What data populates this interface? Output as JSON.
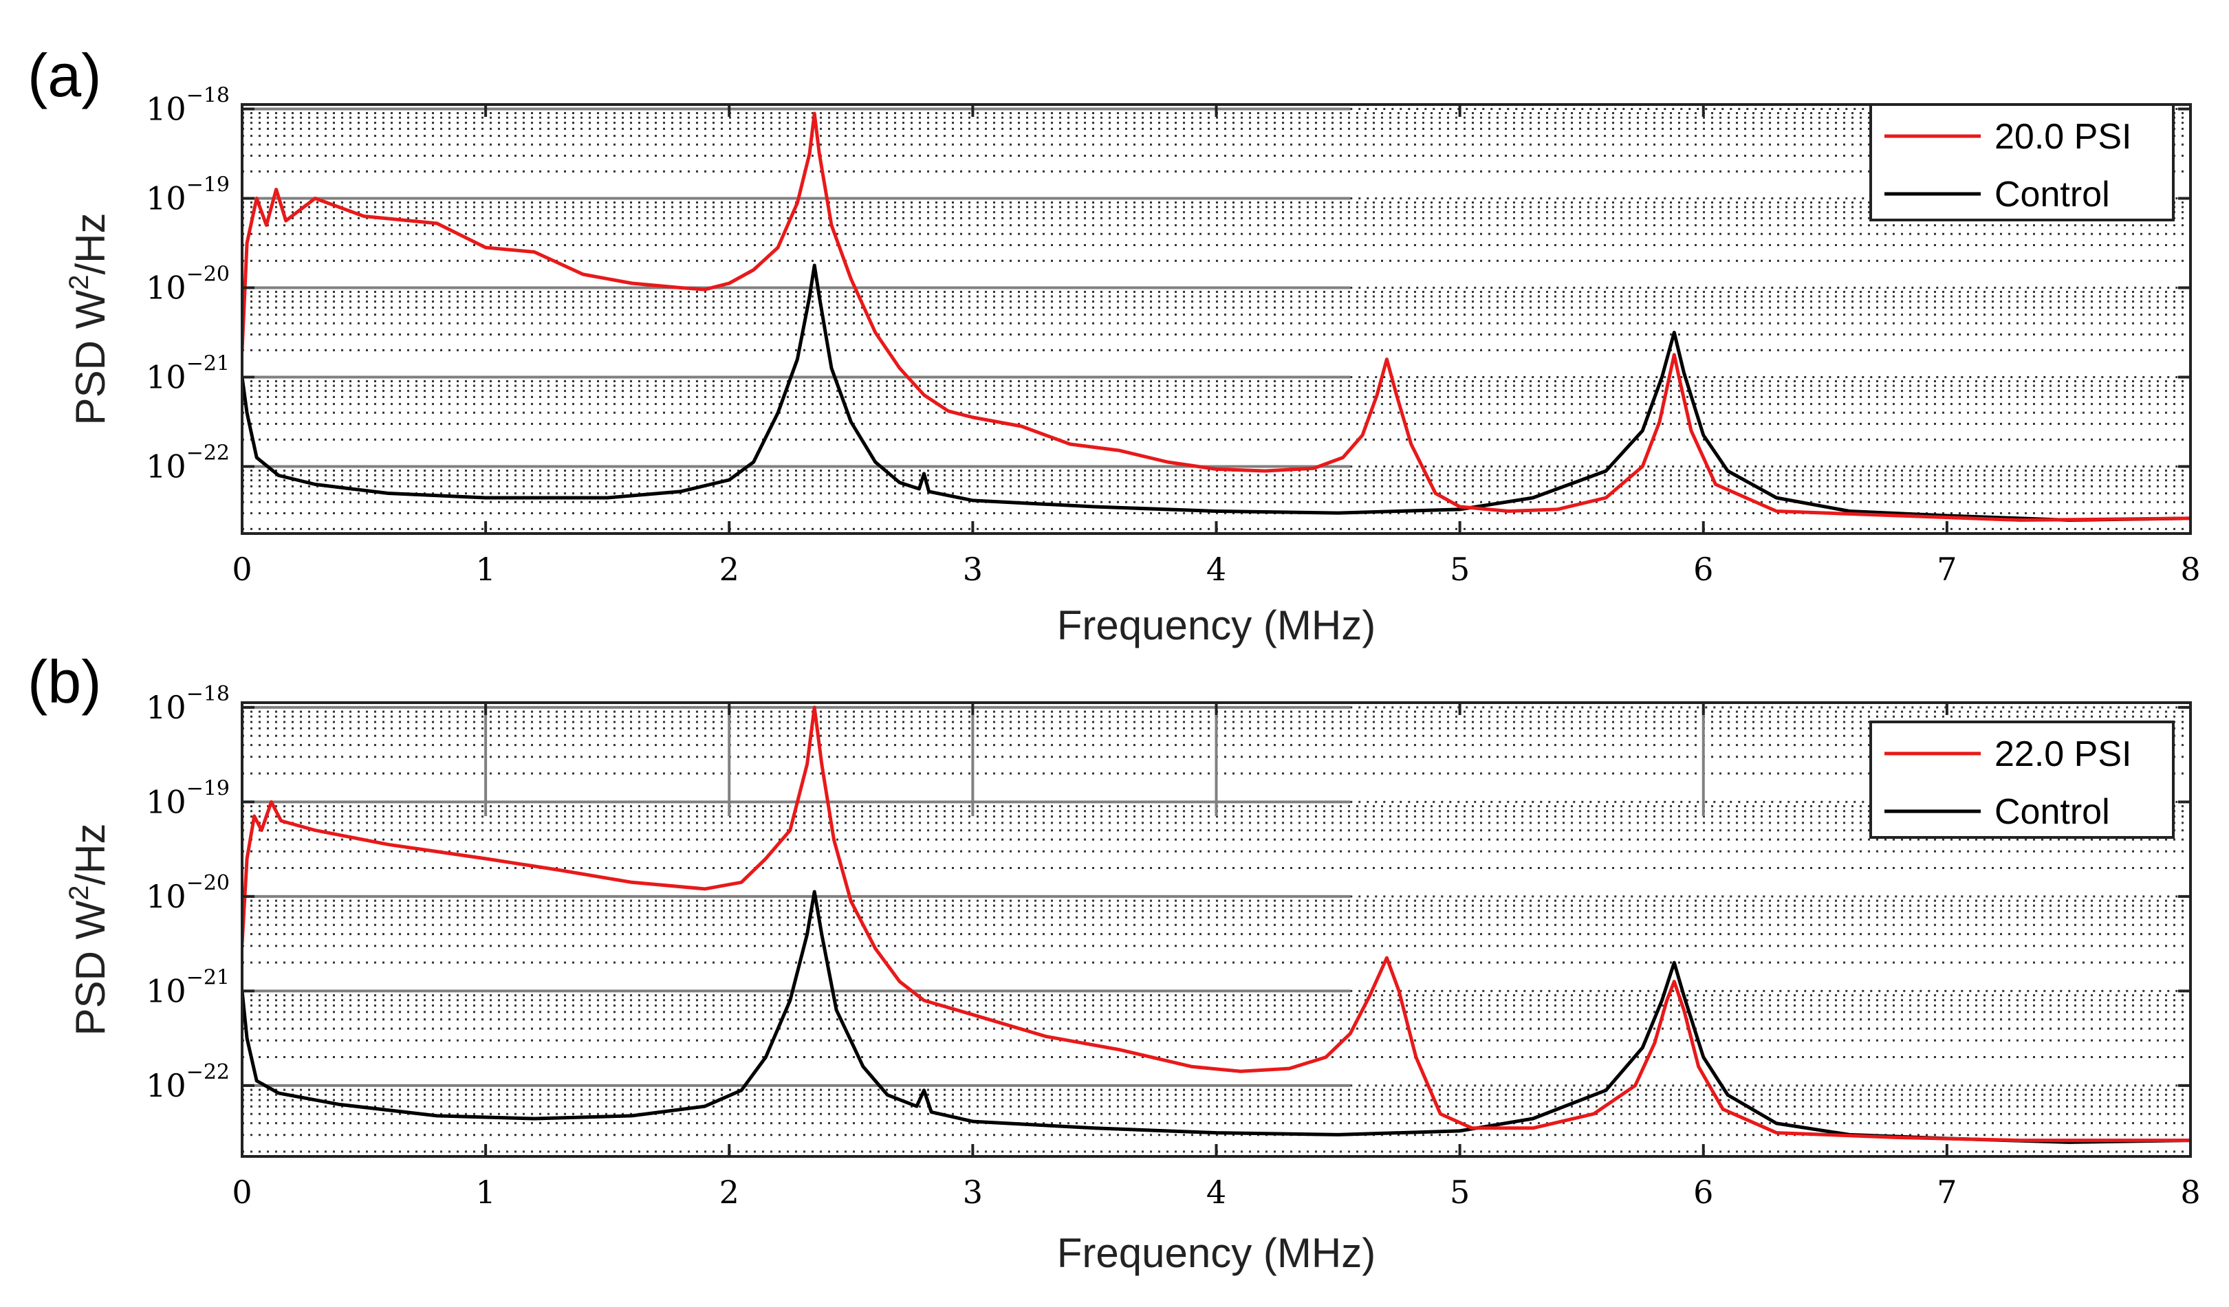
{
  "chart_data": [
    {
      "type": "line",
      "panel_label": "(a)",
      "xlabel": "Frequency (MHz)",
      "ylabel_main": "PSD W",
      "ylabel_sup": "2",
      "ylabel_tail": "/Hz",
      "xlim": [
        0,
        8
      ],
      "ylim_log10": [
        -22.75,
        -17.95
      ],
      "yscale": "log",
      "grid": true,
      "legend_position": "top-right",
      "x_ticks": [
        "0",
        "1",
        "2",
        "3",
        "4",
        "5",
        "6",
        "7",
        "8"
      ],
      "y_ticks": [
        {
          "base": "10",
          "exp": "−18"
        },
        {
          "base": "10",
          "exp": "−19"
        },
        {
          "base": "10",
          "exp": "−20"
        },
        {
          "base": "10",
          "exp": "−21"
        },
        {
          "base": "10",
          "exp": "−22"
        }
      ],
      "series": [
        {
          "name": "20.0 PSI",
          "color": "#e8191a",
          "points": [
            [
              0.0,
              -20.7
            ],
            [
              0.02,
              -19.5
            ],
            [
              0.06,
              -19.0
            ],
            [
              0.1,
              -19.3
            ],
            [
              0.14,
              -18.9
            ],
            [
              0.18,
              -19.25
            ],
            [
              0.3,
              -19.0
            ],
            [
              0.5,
              -19.2
            ],
            [
              0.8,
              -19.28
            ],
            [
              1.0,
              -19.55
            ],
            [
              1.2,
              -19.6
            ],
            [
              1.4,
              -19.85
            ],
            [
              1.6,
              -19.95
            ],
            [
              1.8,
              -20.0
            ],
            [
              1.9,
              -20.02
            ],
            [
              2.0,
              -19.95
            ],
            [
              2.1,
              -19.8
            ],
            [
              2.2,
              -19.55
            ],
            [
              2.28,
              -19.05
            ],
            [
              2.33,
              -18.5
            ],
            [
              2.35,
              -18.05
            ],
            [
              2.37,
              -18.5
            ],
            [
              2.42,
              -19.3
            ],
            [
              2.5,
              -19.9
            ],
            [
              2.6,
              -20.5
            ],
            [
              2.7,
              -20.9
            ],
            [
              2.8,
              -21.2
            ],
            [
              2.9,
              -21.38
            ],
            [
              3.0,
              -21.45
            ],
            [
              3.2,
              -21.55
            ],
            [
              3.4,
              -21.75
            ],
            [
              3.6,
              -21.82
            ],
            [
              3.8,
              -21.95
            ],
            [
              4.0,
              -22.03
            ],
            [
              4.2,
              -22.05
            ],
            [
              4.4,
              -22.02
            ],
            [
              4.52,
              -21.9
            ],
            [
              4.6,
              -21.65
            ],
            [
              4.66,
              -21.2
            ],
            [
              4.7,
              -20.8
            ],
            [
              4.74,
              -21.2
            ],
            [
              4.8,
              -21.75
            ],
            [
              4.9,
              -22.3
            ],
            [
              5.0,
              -22.45
            ],
            [
              5.2,
              -22.5
            ],
            [
              5.4,
              -22.48
            ],
            [
              5.6,
              -22.35
            ],
            [
              5.75,
              -22.0
            ],
            [
              5.82,
              -21.5
            ],
            [
              5.86,
              -21.0
            ],
            [
              5.88,
              -20.75
            ],
            [
              5.9,
              -21.0
            ],
            [
              5.95,
              -21.6
            ],
            [
              6.05,
              -22.2
            ],
            [
              6.3,
              -22.5
            ],
            [
              6.8,
              -22.55
            ],
            [
              7.3,
              -22.6
            ],
            [
              8.0,
              -22.58
            ]
          ]
        },
        {
          "name": "Control",
          "color": "#000000",
          "points": [
            [
              0.0,
              -21.0
            ],
            [
              0.02,
              -21.4
            ],
            [
              0.06,
              -21.9
            ],
            [
              0.15,
              -22.1
            ],
            [
              0.3,
              -22.2
            ],
            [
              0.6,
              -22.3
            ],
            [
              1.0,
              -22.35
            ],
            [
              1.5,
              -22.35
            ],
            [
              1.8,
              -22.28
            ],
            [
              2.0,
              -22.15
            ],
            [
              2.1,
              -21.95
            ],
            [
              2.2,
              -21.4
            ],
            [
              2.28,
              -20.8
            ],
            [
              2.33,
              -20.1
            ],
            [
              2.35,
              -19.75
            ],
            [
              2.37,
              -20.1
            ],
            [
              2.42,
              -20.9
            ],
            [
              2.5,
              -21.5
            ],
            [
              2.6,
              -21.95
            ],
            [
              2.7,
              -22.18
            ],
            [
              2.78,
              -22.25
            ],
            [
              2.8,
              -22.08
            ],
            [
              2.82,
              -22.28
            ],
            [
              3.0,
              -22.38
            ],
            [
              3.5,
              -22.45
            ],
            [
              4.0,
              -22.5
            ],
            [
              4.5,
              -22.52
            ],
            [
              5.0,
              -22.48
            ],
            [
              5.3,
              -22.35
            ],
            [
              5.6,
              -22.05
            ],
            [
              5.75,
              -21.6
            ],
            [
              5.83,
              -21.0
            ],
            [
              5.88,
              -20.5
            ],
            [
              5.92,
              -20.95
            ],
            [
              6.0,
              -21.65
            ],
            [
              6.1,
              -22.05
            ],
            [
              6.3,
              -22.35
            ],
            [
              6.6,
              -22.5
            ],
            [
              7.0,
              -22.55
            ],
            [
              7.5,
              -22.6
            ],
            [
              8.0,
              -22.58
            ]
          ]
        }
      ]
    },
    {
      "type": "line",
      "panel_label": "(b)",
      "xlabel": "Frequency (MHz)",
      "ylabel_main": "PSD W",
      "ylabel_sup": "2",
      "ylabel_tail": "/Hz",
      "xlim": [
        0,
        8
      ],
      "ylim_log10": [
        -22.75,
        -17.95
      ],
      "yscale": "log",
      "grid": true,
      "legend_position": "top-right",
      "x_ticks": [
        "0",
        "1",
        "2",
        "3",
        "4",
        "5",
        "6",
        "7",
        "8"
      ],
      "y_ticks": [
        {
          "base": "10",
          "exp": "−18"
        },
        {
          "base": "10",
          "exp": "−19"
        },
        {
          "base": "10",
          "exp": "−20"
        },
        {
          "base": "10",
          "exp": "−21"
        },
        {
          "base": "10",
          "exp": "−22"
        }
      ],
      "series": [
        {
          "name": "22.0 PSI",
          "color": "#e8191a",
          "points": [
            [
              0.0,
              -20.5
            ],
            [
              0.02,
              -19.6
            ],
            [
              0.05,
              -19.15
            ],
            [
              0.08,
              -19.3
            ],
            [
              0.12,
              -19.0
            ],
            [
              0.16,
              -19.2
            ],
            [
              0.3,
              -19.3
            ],
            [
              0.6,
              -19.45
            ],
            [
              1.0,
              -19.6
            ],
            [
              1.3,
              -19.72
            ],
            [
              1.6,
              -19.85
            ],
            [
              1.9,
              -19.92
            ],
            [
              2.05,
              -19.85
            ],
            [
              2.15,
              -19.6
            ],
            [
              2.25,
              -19.3
            ],
            [
              2.32,
              -18.6
            ],
            [
              2.35,
              -18.0
            ],
            [
              2.38,
              -18.6
            ],
            [
              2.43,
              -19.4
            ],
            [
              2.5,
              -20.05
            ],
            [
              2.6,
              -20.55
            ],
            [
              2.7,
              -20.9
            ],
            [
              2.8,
              -21.1
            ],
            [
              3.0,
              -21.25
            ],
            [
              3.3,
              -21.48
            ],
            [
              3.6,
              -21.62
            ],
            [
              3.9,
              -21.8
            ],
            [
              4.1,
              -21.85
            ],
            [
              4.3,
              -21.82
            ],
            [
              4.45,
              -21.7
            ],
            [
              4.55,
              -21.45
            ],
            [
              4.63,
              -21.05
            ],
            [
              4.7,
              -20.65
            ],
            [
              4.75,
              -21.0
            ],
            [
              4.82,
              -21.7
            ],
            [
              4.92,
              -22.3
            ],
            [
              5.05,
              -22.45
            ],
            [
              5.3,
              -22.45
            ],
            [
              5.55,
              -22.3
            ],
            [
              5.72,
              -22.0
            ],
            [
              5.8,
              -21.55
            ],
            [
              5.85,
              -21.1
            ],
            [
              5.88,
              -20.9
            ],
            [
              5.92,
              -21.2
            ],
            [
              5.98,
              -21.8
            ],
            [
              6.08,
              -22.25
            ],
            [
              6.3,
              -22.5
            ],
            [
              6.8,
              -22.55
            ],
            [
              7.3,
              -22.58
            ],
            [
              8.0,
              -22.58
            ]
          ]
        },
        {
          "name": "Control",
          "color": "#000000",
          "points": [
            [
              0.0,
              -21.0
            ],
            [
              0.02,
              -21.5
            ],
            [
              0.06,
              -21.95
            ],
            [
              0.15,
              -22.08
            ],
            [
              0.4,
              -22.2
            ],
            [
              0.8,
              -22.32
            ],
            [
              1.2,
              -22.35
            ],
            [
              1.6,
              -22.32
            ],
            [
              1.9,
              -22.22
            ],
            [
              2.05,
              -22.05
            ],
            [
              2.15,
              -21.7
            ],
            [
              2.25,
              -21.1
            ],
            [
              2.32,
              -20.4
            ],
            [
              2.35,
              -19.95
            ],
            [
              2.38,
              -20.4
            ],
            [
              2.44,
              -21.2
            ],
            [
              2.55,
              -21.8
            ],
            [
              2.65,
              -22.1
            ],
            [
              2.77,
              -22.22
            ],
            [
              2.8,
              -22.05
            ],
            [
              2.83,
              -22.28
            ],
            [
              3.0,
              -22.38
            ],
            [
              3.5,
              -22.45
            ],
            [
              4.0,
              -22.5
            ],
            [
              4.5,
              -22.52
            ],
            [
              5.0,
              -22.48
            ],
            [
              5.3,
              -22.35
            ],
            [
              5.6,
              -22.05
            ],
            [
              5.75,
              -21.6
            ],
            [
              5.83,
              -21.1
            ],
            [
              5.88,
              -20.7
            ],
            [
              5.92,
              -21.05
            ],
            [
              6.0,
              -21.7
            ],
            [
              6.1,
              -22.1
            ],
            [
              6.3,
              -22.4
            ],
            [
              6.6,
              -22.52
            ],
            [
              7.0,
              -22.56
            ],
            [
              7.5,
              -22.6
            ],
            [
              8.0,
              -22.58
            ]
          ]
        }
      ]
    }
  ]
}
